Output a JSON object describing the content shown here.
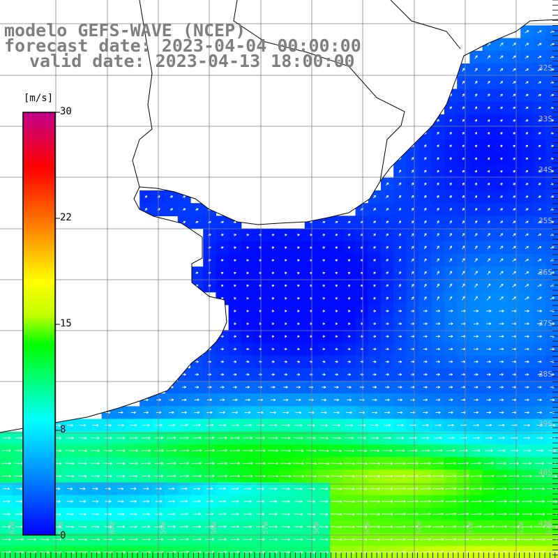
{
  "title": {
    "model": "modelo GEFS-WAVE (NCEP)",
    "forecast_date": "forecast date: 2023-04-04 00:00:00",
    "valid_date": "valid date: 2023-04-13 18:00:00"
  },
  "colorbar": {
    "unit": "[m/s]",
    "ticks": [
      "30",
      "22",
      "15",
      "8",
      "0"
    ],
    "tick_values": [
      30,
      22,
      15,
      8,
      0
    ],
    "range": [
      0,
      30
    ],
    "colors": [
      "#0000ff",
      "#0080ff",
      "#00ffff",
      "#00ff00",
      "#ffff00",
      "#ff8000",
      "#ff0000",
      "#c00080"
    ]
  },
  "latitude_labels": [
    "32S",
    "33S",
    "34S",
    "35S",
    "36S",
    "37S",
    "38S",
    "39S",
    "40S",
    "41S"
  ],
  "longitude_labels": [
    "62W",
    "61W",
    "60W",
    "59W",
    "58W",
    "57W",
    "56W",
    "55W",
    "54W",
    "53W",
    "52W",
    "51W"
  ],
  "map": {
    "variable": "wind speed",
    "land_color": "#ffffff",
    "grid": true,
    "vector_color": "#ffffff"
  }
}
